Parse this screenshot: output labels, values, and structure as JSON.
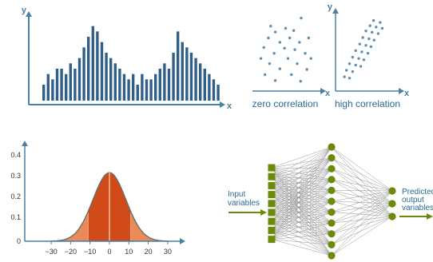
{
  "colors": {
    "axis": "#4a7fa6",
    "bar": "#2f5f88",
    "scatter": "#5e8fb2",
    "curve_dark": "#d04a1a",
    "curve_light": "#ea8a58",
    "curve_mid": "#e36c33",
    "curve_line": "#6d6d6d",
    "center_line": "#f5c89e",
    "neuron": "#6b8a0a",
    "edge": "#8c8c8c",
    "arrow": "#6b8a0a",
    "text": "#2d6a93"
  },
  "chart_data": [
    {
      "type": "bar",
      "id": "histogram",
      "xlabel": "x",
      "ylabel": "y",
      "values": [
        3,
        5,
        4,
        6,
        6,
        5,
        7,
        6,
        8,
        10,
        12,
        14,
        13,
        11,
        9,
        8,
        7,
        6,
        5,
        4,
        5,
        3,
        5,
        4,
        4,
        5,
        6,
        7,
        6,
        9,
        13,
        11,
        10,
        9,
        8,
        7,
        6,
        5,
        4,
        3
      ]
    },
    {
      "type": "scatter",
      "id": "zero-correlation",
      "xlabel": "x",
      "caption": "zero correlation",
      "points": [
        [
          0.75,
          0.95
        ],
        [
          0.22,
          0.84
        ],
        [
          0.48,
          0.81
        ],
        [
          0.3,
          0.76
        ],
        [
          0.62,
          0.78
        ],
        [
          0.18,
          0.68
        ],
        [
          0.55,
          0.68
        ],
        [
          0.88,
          0.68
        ],
        [
          0.38,
          0.62
        ],
        [
          0.72,
          0.62
        ],
        [
          0.1,
          0.55
        ],
        [
          0.46,
          0.54
        ],
        [
          0.64,
          0.52
        ],
        [
          0.28,
          0.47
        ],
        [
          0.82,
          0.47
        ],
        [
          0.05,
          0.4
        ],
        [
          0.52,
          0.4
        ],
        [
          0.92,
          0.4
        ],
        [
          0.2,
          0.33
        ],
        [
          0.68,
          0.33
        ],
        [
          0.38,
          0.26
        ],
        [
          0.85,
          0.25
        ],
        [
          0.12,
          0.18
        ],
        [
          0.58,
          0.18
        ],
        [
          0.3,
          0.1
        ],
        [
          0.74,
          0.09
        ]
      ]
    },
    {
      "type": "scatter",
      "id": "high-correlation",
      "xlabel": "x",
      "ylabel": "y",
      "caption": "high correlation",
      "points": [
        [
          0.65,
          0.98
        ],
        [
          0.78,
          0.95
        ],
        [
          0.58,
          0.9
        ],
        [
          0.7,
          0.88
        ],
        [
          0.82,
          0.86
        ],
        [
          0.5,
          0.82
        ],
        [
          0.62,
          0.8
        ],
        [
          0.74,
          0.78
        ],
        [
          0.44,
          0.72
        ],
        [
          0.56,
          0.7
        ],
        [
          0.66,
          0.68
        ],
        [
          0.38,
          0.62
        ],
        [
          0.5,
          0.6
        ],
        [
          0.6,
          0.58
        ],
        [
          0.3,
          0.52
        ],
        [
          0.42,
          0.5
        ],
        [
          0.54,
          0.48
        ],
        [
          0.24,
          0.42
        ],
        [
          0.36,
          0.4
        ],
        [
          0.46,
          0.38
        ],
        [
          0.18,
          0.32
        ],
        [
          0.3,
          0.3
        ],
        [
          0.4,
          0.28
        ],
        [
          0.12,
          0.22
        ],
        [
          0.24,
          0.2
        ],
        [
          0.08,
          0.12
        ],
        [
          0.18,
          0.1
        ]
      ]
    },
    {
      "type": "area",
      "id": "normal-distribution",
      "x_ticks": [
        "−30",
        "−20",
        "−10",
        "0",
        "10",
        "20",
        "30"
      ],
      "y_ticks": [
        "0",
        "0.1",
        "0.2",
        "0.3",
        "0.4"
      ],
      "xlim": [
        -40,
        40
      ],
      "ylim": [
        0,
        0.45
      ],
      "peak": 0.33,
      "sigma": 8.5
    }
  ],
  "diagram": {
    "type": "neural-network",
    "input_label": [
      "Input",
      "variables"
    ],
    "output_label": [
      "Predicted",
      "output",
      "variables"
    ],
    "layers": [
      9,
      11,
      3
    ]
  }
}
